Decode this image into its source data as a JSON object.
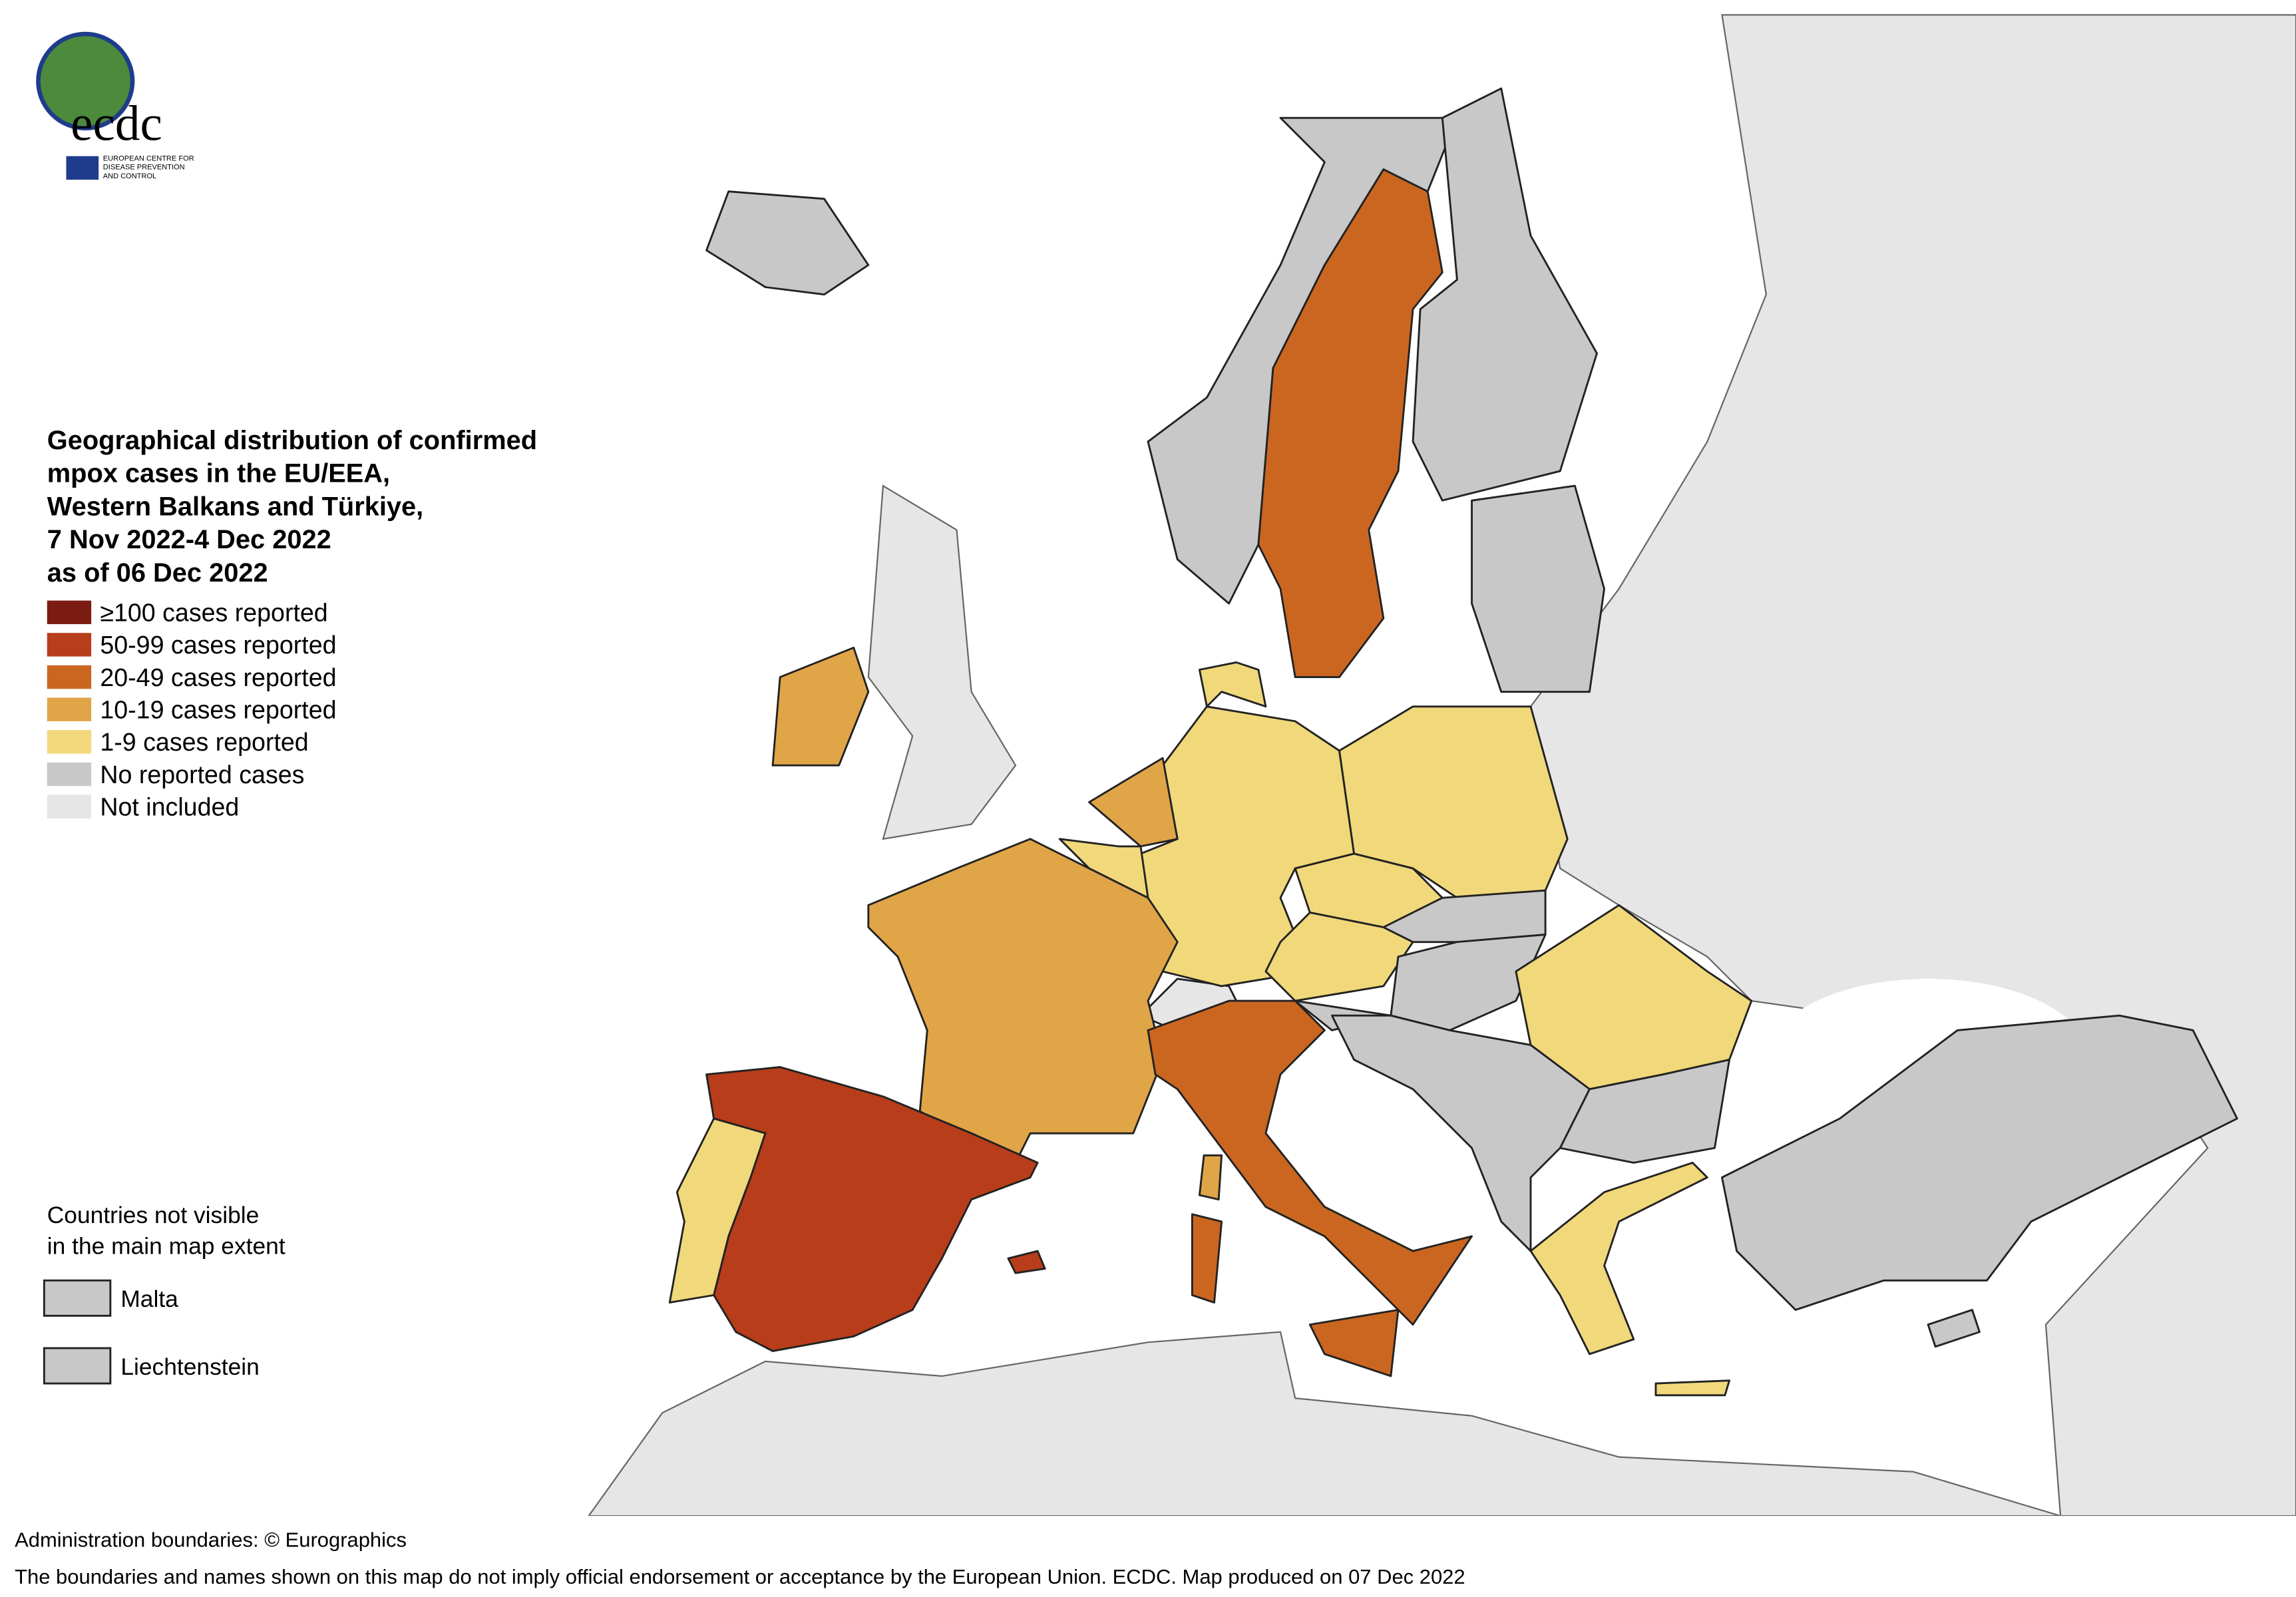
{
  "logo": {
    "name": "ecdc",
    "subtitle": [
      "EUROPEAN CENTRE FOR",
      "DISEASE PREVENTION",
      "AND CONTROL"
    ]
  },
  "title": [
    "Geographical distribution of confirmed",
    "mpox cases in the EU/EEA,",
    "Western Balkans and Türkiye,",
    "7 Nov 2022-4 Dec 2022",
    "as of 06 Dec 2022"
  ],
  "legend": [
    {
      "label": "≥100 cases reported",
      "color": "#7b1c12"
    },
    {
      "label": "50-99 cases reported",
      "color": "#b83d1a"
    },
    {
      "label": "20-49 cases reported",
      "color": "#cb6621"
    },
    {
      "label": "10-19 cases reported",
      "color": "#e0a547"
    },
    {
      "label": "1-9 cases reported",
      "color": "#f0d87b"
    },
    {
      "label": "No reported cases",
      "color": "#c8c8c8"
    },
    {
      "label": "Not included",
      "color": "#e6e6e6"
    }
  ],
  "not_visible": {
    "title": [
      "Countries not visible",
      "in the main map extent"
    ],
    "countries": [
      {
        "name": "Malta",
        "color": "#c8c8c8"
      },
      {
        "name": "Liechtenstein",
        "color": "#c8c8c8"
      }
    ]
  },
  "footer": [
    "Administration boundaries: © Eurographics",
    "The boundaries and names shown on this map do not imply official endorsement or acceptance by the European Union. ECDC. Map produced on 07 Dec 2022"
  ]
}
